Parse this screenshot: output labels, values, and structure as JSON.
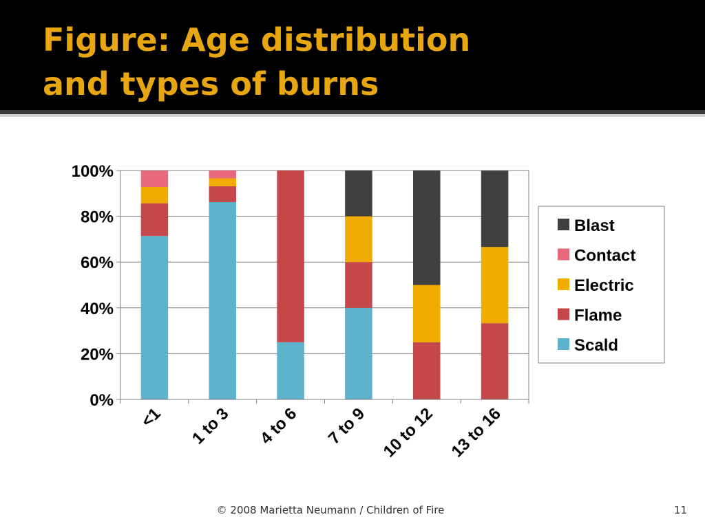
{
  "slide": {
    "title_line1": "Figure: Age distribution",
    "title_line2": "and types of burns",
    "footer": "© 2008 Marietta Neumann / Children of Fire",
    "page_number": "11"
  },
  "chart_data": {
    "type": "bar",
    "stacked": "percent",
    "categories": [
      "<1",
      "1 to 3",
      "4 to 6",
      "7 to 9",
      "10 to 12",
      "13 to 16"
    ],
    "ylim": [
      0,
      100
    ],
    "yticks": [
      "0%",
      "20%",
      "40%",
      "60%",
      "80%",
      "100%"
    ],
    "grid": true,
    "legend_position": "right",
    "series": [
      {
        "name": "Scald",
        "color": "#5eb3cc",
        "values": [
          71.4,
          86.2,
          25,
          40,
          0,
          0
        ]
      },
      {
        "name": "Flame",
        "color": "#c6474a",
        "values": [
          14.3,
          6.9,
          75,
          20,
          25,
          33.3
        ]
      },
      {
        "name": "Electric",
        "color": "#f0ac00",
        "values": [
          7.1,
          3.45,
          0,
          20,
          25,
          33.3
        ]
      },
      {
        "name": "Contact",
        "color": "#e8687c",
        "values": [
          7.1,
          3.45,
          0,
          0,
          0,
          0
        ]
      },
      {
        "name": "Blast",
        "color": "#404040",
        "values": [
          0,
          0,
          0,
          20,
          50,
          33.3
        ]
      }
    ],
    "legend_order": [
      "Blast",
      "Contact",
      "Electric",
      "Flame",
      "Scald"
    ]
  }
}
